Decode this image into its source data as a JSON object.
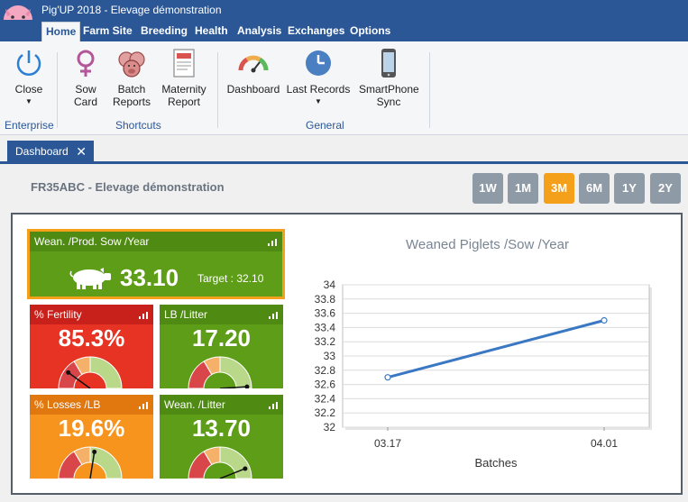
{
  "window": {
    "title": "Pig'UP 2018 - Elevage démonstration"
  },
  "menu": {
    "tabs": [
      {
        "label": "Home",
        "active": true
      },
      {
        "label": "Farm Site"
      },
      {
        "label": "Breeding"
      },
      {
        "label": "Health"
      },
      {
        "label": "Analysis"
      },
      {
        "label": "Exchanges"
      },
      {
        "label": "Options"
      }
    ]
  },
  "ribbon": {
    "groups": [
      {
        "label": "Enterprise"
      },
      {
        "label": "Shortcuts"
      },
      {
        "label": "General"
      }
    ],
    "buttons": [
      {
        "label": "Close",
        "icon": "power-icon",
        "dropdown": true
      },
      {
        "label": "Sow Card",
        "icon": "female-symbol-icon"
      },
      {
        "label": "Batch Reports",
        "icon": "pig-faces-icon"
      },
      {
        "label": "Maternity Report",
        "icon": "report-document-icon"
      },
      {
        "label": "Dashboard",
        "icon": "speedometer-icon"
      },
      {
        "label": "Last Records",
        "icon": "clock-icon",
        "dropdown": true
      },
      {
        "label": "SmartPhone Sync",
        "icon": "smartphone-icon"
      }
    ]
  },
  "doc_tabs": [
    {
      "label": "Dashboard",
      "closable": true
    }
  ],
  "dashboard": {
    "farm_title": "FR35ABC - Elevage démonstration",
    "periods": [
      "1W",
      "1M",
      "3M",
      "6M",
      "1Y",
      "2Y"
    ],
    "active_period": "3M",
    "kpis": [
      {
        "name": "Wean. /Prod. Sow /Year",
        "value": "33.10",
        "target": "Target : 32.10",
        "color": "#5e9d18",
        "selected": true
      },
      {
        "name": "% Fertility",
        "value": "85.3%",
        "color": "#e63323",
        "gauge": 0.2
      },
      {
        "name": "LB /Litter",
        "value": "17.20",
        "color": "#5e9d18",
        "gauge": 0.98
      },
      {
        "name": "% Losses /LB",
        "value": "19.6%",
        "color": "#f7941d",
        "gauge": 0.55
      },
      {
        "name": "Wean. /Litter",
        "value": "13.70",
        "color": "#5e9d18",
        "gauge": 0.88
      }
    ],
    "colors": {
      "accent": "#2b5797",
      "selected_border": "#f5a01a",
      "series": "#3a78c3"
    }
  },
  "chart_data": {
    "type": "line",
    "title": "Weaned Piglets /Sow /Year",
    "xlabel": "Batches",
    "ylabel": "",
    "categories": [
      "03.17",
      "04.01"
    ],
    "series": [
      {
        "values": [
          32.7,
          33.5
        ]
      }
    ],
    "ylim": [
      32,
      34
    ],
    "yticks": [
      "32",
      "32.2",
      "32.4",
      "32.6",
      "32.8",
      "33",
      "33.2",
      "33.4",
      "33.6",
      "33.8",
      "34"
    ],
    "grid": true
  }
}
